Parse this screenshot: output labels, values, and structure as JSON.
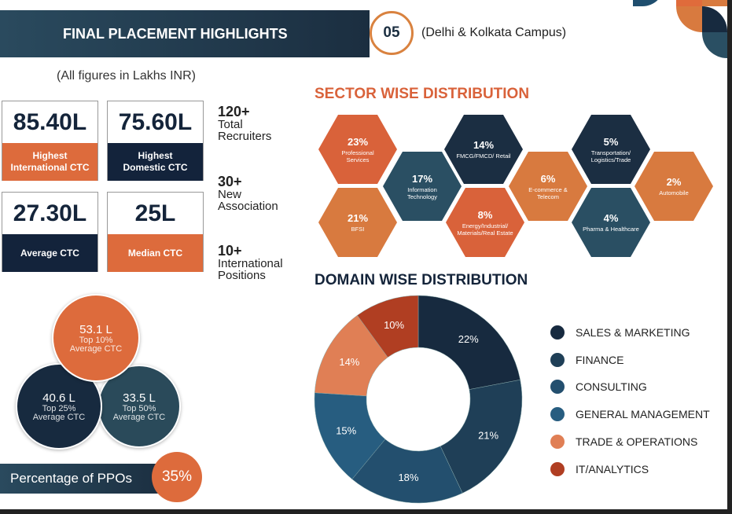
{
  "header": {
    "title": "FINAL PLACEMENT HIGHLIGHTS",
    "number": "05",
    "campus": "(Delhi & Kolkata Campus)"
  },
  "note": "(All figures in Lakhs INR)",
  "kpis": [
    {
      "value": "85.40L",
      "label": "Highest International CTC",
      "color": "#dd6b3c"
    },
    {
      "value": "75.60L",
      "label": "Highest Domestic CTC",
      "color": "#13233b"
    },
    {
      "value": "27.30L",
      "label": "Average CTC",
      "color": "#13233b"
    },
    {
      "value": "25L",
      "label": "Median CTC",
      "color": "#dd6b3c"
    }
  ],
  "stats": [
    {
      "value": "120+",
      "label1": "Total",
      "label2": "Recruiters"
    },
    {
      "value": "30+",
      "label1": "New",
      "label2": "Association"
    },
    {
      "value": "10+",
      "label1": "International",
      "label2": "Positions"
    }
  ],
  "tiers": [
    {
      "value": "53.1 L",
      "label1": "Top 10%",
      "label2": "Average CTC"
    },
    {
      "value": "40.6 L",
      "label1": "Top 25%",
      "label2": "Average CTC"
    },
    {
      "value": "33.5 L",
      "label1": "Top 50%",
      "label2": "Average CTC"
    }
  ],
  "ppo": {
    "label": "Percentage of PPOs",
    "value": "35%"
  },
  "sector": {
    "title": "SECTOR WISE DISTRIBUTION",
    "items": [
      {
        "pct": "23%",
        "name": "Professional Services",
        "color": "#d9623a"
      },
      {
        "pct": "21%",
        "name": "BFSI",
        "color": "#d87a3f"
      },
      {
        "pct": "17%",
        "name": "Information Technology",
        "color": "#2a4f63"
      },
      {
        "pct": "14%",
        "name": "FMCG/FMCD/ Retail",
        "color": "#1b2e42"
      },
      {
        "pct": "8%",
        "name": "Energy/Industrial/ Materials/Real Estate",
        "color": "#d9623a"
      },
      {
        "pct": "6%",
        "name": "E-commerce & Telecom",
        "color": "#d87a3f"
      },
      {
        "pct": "5%",
        "name": "Transportation/ Logistics/Trade",
        "color": "#1b2e42"
      },
      {
        "pct": "4%",
        "name": "Pharma & Healthcare",
        "color": "#2a4f63"
      },
      {
        "pct": "2%",
        "name": "Automobile",
        "color": "#d87a3f"
      }
    ]
  },
  "chart_data": {
    "type": "pie",
    "donut": true,
    "title": "DOMAIN WISE DISTRIBUTION",
    "legend": "right",
    "categories": [
      "SALES & MARKETING",
      "FINANCE",
      "CONSULTING",
      "GENERAL MANAGEMENT",
      "TRADE & OPERATIONS",
      "IT/ANALYTICS"
    ],
    "values": [
      22,
      21,
      18,
      15,
      14,
      10
    ],
    "labels": [
      "22%",
      "21%",
      "18%",
      "15%",
      "14%",
      "10%"
    ],
    "colors": [
      "#172a3f",
      "#1f3f57",
      "#234f6e",
      "#275d80",
      "#e07f55",
      "#b03e22"
    ]
  }
}
